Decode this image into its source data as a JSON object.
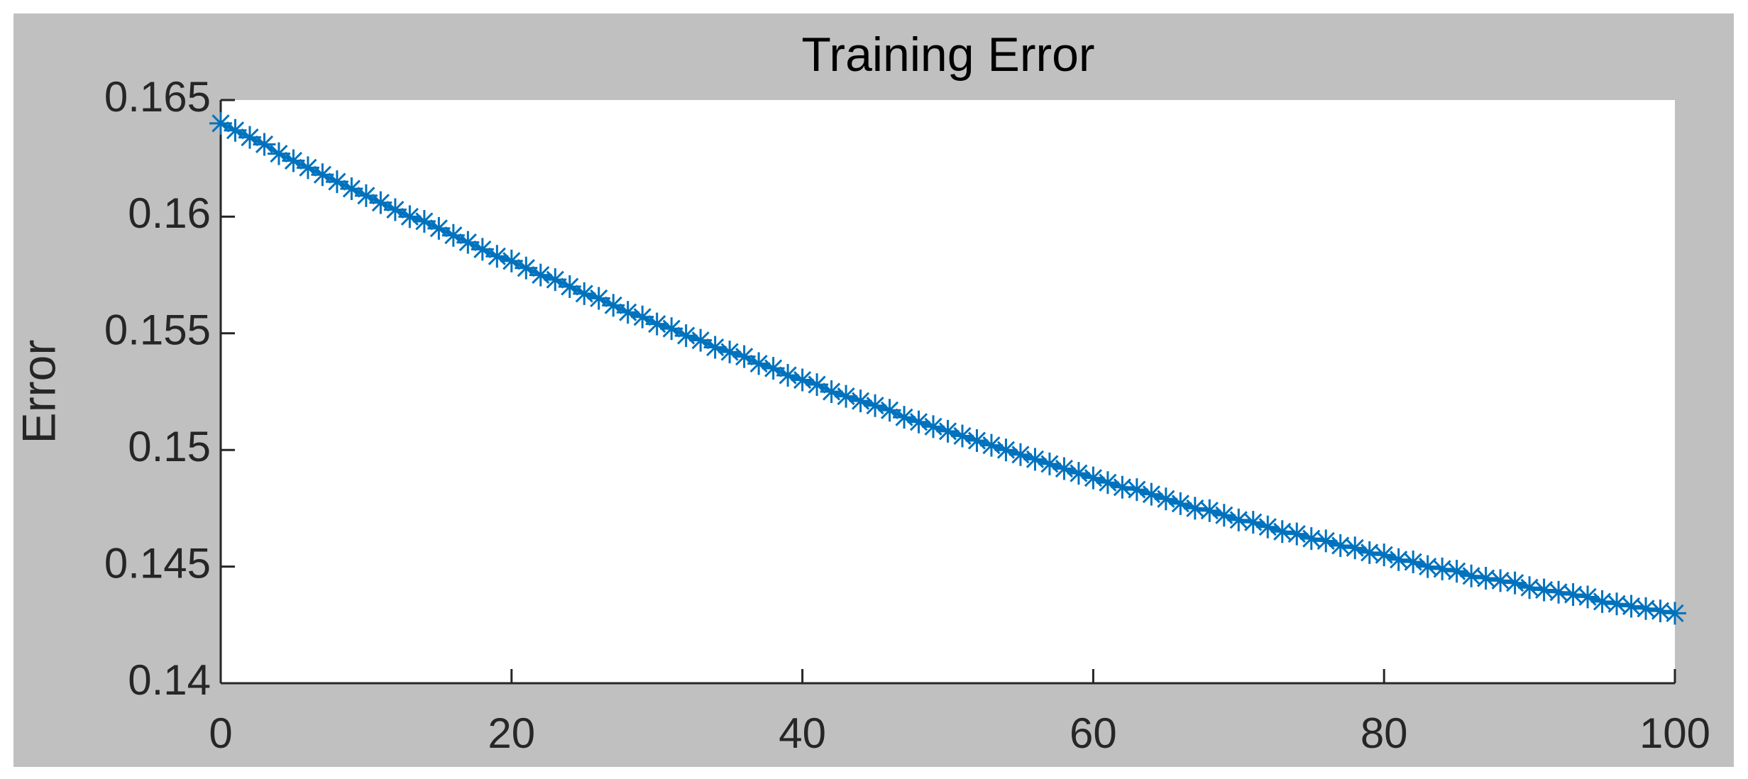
{
  "chart_data": {
    "type": "line",
    "title": "Training Error",
    "y_label": "Error",
    "marker": "asterisk",
    "color": "#0072bd",
    "x": [
      0,
      1,
      2,
      3,
      4,
      5,
      6,
      7,
      8,
      9,
      10,
      11,
      12,
      13,
      14,
      15,
      16,
      17,
      18,
      19,
      20,
      21,
      22,
      23,
      24,
      25,
      26,
      27,
      28,
      29,
      30,
      31,
      32,
      33,
      34,
      35,
      36,
      37,
      38,
      39,
      40,
      41,
      42,
      43,
      44,
      45,
      46,
      47,
      48,
      49,
      50,
      51,
      52,
      53,
      54,
      55,
      56,
      57,
      58,
      59,
      60,
      61,
      62,
      63,
      64,
      65,
      66,
      67,
      68,
      69,
      70,
      71,
      72,
      73,
      74,
      75,
      76,
      77,
      78,
      79,
      80,
      81,
      82,
      83,
      84,
      85,
      86,
      87,
      88,
      89,
      90,
      91,
      92,
      93,
      94,
      95,
      96,
      97,
      98,
      99,
      100
    ],
    "values": [
      0.164,
      0.1637,
      0.1634,
      0.1631,
      0.1627,
      0.1624,
      0.1621,
      0.1618,
      0.1615,
      0.1612,
      0.1609,
      0.1606,
      0.1603,
      0.16,
      0.1598,
      0.1595,
      0.1592,
      0.1589,
      0.1586,
      0.1583,
      0.1581,
      0.1578,
      0.1575,
      0.1573,
      0.157,
      0.1567,
      0.1565,
      0.1562,
      0.1559,
      0.1557,
      0.1554,
      0.1552,
      0.1549,
      0.1547,
      0.1544,
      0.1542,
      0.154,
      0.1537,
      0.1535,
      0.1532,
      0.153,
      0.1528,
      0.1525,
      0.1523,
      0.1521,
      0.1519,
      0.1517,
      0.1514,
      0.1512,
      0.151,
      0.1508,
      0.1506,
      0.1504,
      0.1502,
      0.15,
      0.1498,
      0.1496,
      0.1494,
      0.1492,
      0.149,
      0.1488,
      0.1486,
      0.1484,
      0.1483,
      0.1481,
      0.1479,
      0.1477,
      0.1475,
      0.1474,
      0.1472,
      0.147,
      0.1469,
      0.1467,
      0.1465,
      0.1464,
      0.1462,
      0.1461,
      0.1459,
      0.1458,
      0.1456,
      0.1455,
      0.1453,
      0.1452,
      0.145,
      0.1449,
      0.1448,
      0.1446,
      0.1445,
      0.1444,
      0.1443,
      0.1441,
      0.144,
      0.1439,
      0.1438,
      0.1437,
      0.1435,
      0.1434,
      0.1433,
      0.1432,
      0.1431,
      0.143
    ],
    "xlim": [
      0,
      100
    ],
    "xticks": [
      0,
      20,
      40,
      60,
      80,
      100
    ],
    "ylim": [
      0.14,
      0.165
    ],
    "yticks": [
      0.14,
      0.145,
      0.15,
      0.155,
      0.16,
      0.165
    ]
  }
}
